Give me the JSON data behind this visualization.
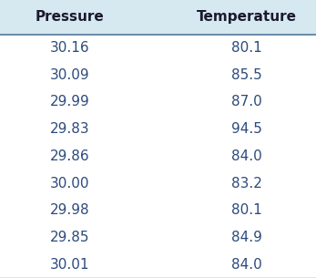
{
  "headers": [
    "Pressure",
    "Temperature"
  ],
  "rows": [
    [
      "30.16",
      "80.1"
    ],
    [
      "30.09",
      "85.5"
    ],
    [
      "29.99",
      "87.0"
    ],
    [
      "29.83",
      "94.5"
    ],
    [
      "29.86",
      "84.0"
    ],
    [
      "30.00",
      "83.2"
    ],
    [
      "29.98",
      "80.1"
    ],
    [
      "29.85",
      "84.9"
    ],
    [
      "30.01",
      "84.0"
    ]
  ],
  "header_bg_color": "#d6e8f0",
  "header_text_color": "#1a1a2e",
  "row_text_color": "#2c4a7c",
  "header_fontsize": 11,
  "row_fontsize": 11,
  "fig_bg_color": "#ffffff",
  "header_line_color": "#5a7a9a",
  "bottom_line_color": "#5a7a9a"
}
